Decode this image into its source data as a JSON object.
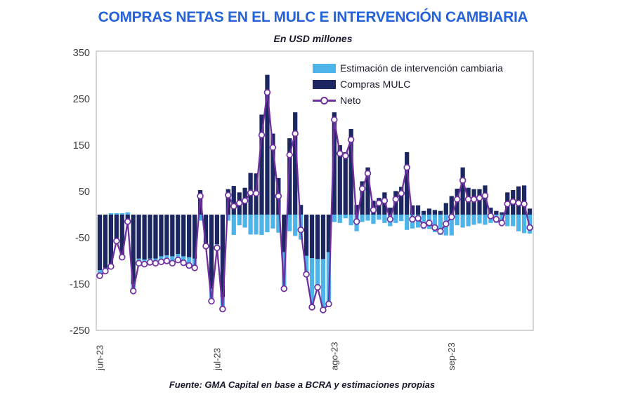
{
  "header": {
    "title": "COMPRAS NETAS EN EL MULC E INTERVENCIÓN CAMBIARIA",
    "subtitle": "En USD millones"
  },
  "footer": {
    "source": "Fuente: GMA Capital en base a BCRA y estimaciones propias"
  },
  "colors": {
    "title_blue": "#2563DB",
    "bar_navy": "#1C2660",
    "bar_lightblue": "#4DB4EA",
    "line_purple": "#7030A0",
    "marker_fill": "#ffffff",
    "axis_text": "#404040",
    "plot_border": "#b9b9b9"
  },
  "chart_data": {
    "type": "bar",
    "subtype": "stacked-bars-with-line",
    "title": "COMPRAS NETAS EN EL MULC E INTERVENCIÓN CAMBIARIA",
    "subtitle": "En USD millones",
    "ylabel": "",
    "xlabel": "",
    "ylim": [
      -250,
      350
    ],
    "yticks": [
      350,
      250,
      150,
      50,
      -50,
      -150,
      -250
    ],
    "grid": false,
    "legend_position": "top-center-inside",
    "xticks": [
      {
        "label": "jun-23",
        "index": 0
      },
      {
        "label": "jul-23",
        "index": 21
      },
      {
        "label": "ago-23",
        "index": 42
      },
      {
        "label": "sep-23",
        "index": 63
      }
    ],
    "series": [
      {
        "name": "Estimación de intervención cambiaria",
        "type": "bar",
        "color": "#4DB4EA",
        "values": [
          -12,
          -7,
          3,
          3,
          3,
          5,
          -15,
          -10,
          -10,
          -8,
          -10,
          -12,
          -12,
          -15,
          -13,
          -14,
          -18,
          -20,
          -13,
          -6,
          -27,
          -8,
          -26,
          -13,
          -44,
          -23,
          -28,
          -43,
          -43,
          -44,
          -38,
          -30,
          -39,
          -79,
          -36,
          -46,
          -54,
          -40,
          -106,
          -61,
          -110,
          -112,
          -16,
          -18,
          -8,
          -23,
          -36,
          -16,
          -13,
          -20,
          -11,
          -18,
          -25,
          -18,
          -14,
          -33,
          -30,
          -28,
          -31,
          -31,
          -38,
          -44,
          -45,
          -45,
          -23,
          -28,
          -25,
          -22,
          -19,
          -22,
          -18,
          -18,
          -23,
          -25,
          -25,
          -36,
          -40,
          -41
        ]
      },
      {
        "name": "Compras MULC",
        "type": "bar",
        "color": "#1C2660",
        "values": [
          -120,
          -115,
          -115,
          -60,
          -95,
          -20,
          -150,
          -95,
          -97,
          -95,
          -95,
          -90,
          -88,
          -90,
          -85,
          -90,
          -92,
          -95,
          53,
          -62,
          -160,
          -64,
          -178,
          55,
          62,
          48,
          58,
          90,
          89,
          216,
          302,
          175,
          79,
          -81,
          165,
          221,
          21,
          -89,
          -94,
          -96,
          -96,
          -81,
          221,
          150,
          135,
          185,
          21,
          72,
          102,
          30,
          36,
          48,
          15,
          51,
          60,
          135,
          20,
          20,
          8,
          13,
          10,
          8,
          25,
          40,
          56,
          102,
          58,
          55,
          55,
          63,
          15,
          8,
          5,
          48,
          53,
          61,
          63,
          13
        ]
      },
      {
        "name": "Neto",
        "type": "line",
        "color": "#7030A0",
        "values": [
          -132,
          -122,
          -112,
          -57,
          -92,
          -15,
          -165,
          -105,
          -107,
          -103,
          -105,
          -102,
          -100,
          -105,
          -98,
          -104,
          -110,
          -115,
          40,
          -68,
          -187,
          -72,
          -204,
          42,
          18,
          25,
          30,
          47,
          46,
          172,
          264,
          145,
          40,
          -160,
          129,
          175,
          -33,
          -129,
          -200,
          -157,
          -206,
          -193,
          205,
          132,
          127,
          162,
          -15,
          56,
          89,
          10,
          25,
          30,
          -10,
          33,
          46,
          102,
          -10,
          -8,
          -23,
          -18,
          -28,
          -36,
          -20,
          -5,
          33,
          74,
          33,
          33,
          36,
          41,
          -3,
          -10,
          -18,
          23,
          28,
          25,
          23,
          -28
        ]
      }
    ]
  }
}
